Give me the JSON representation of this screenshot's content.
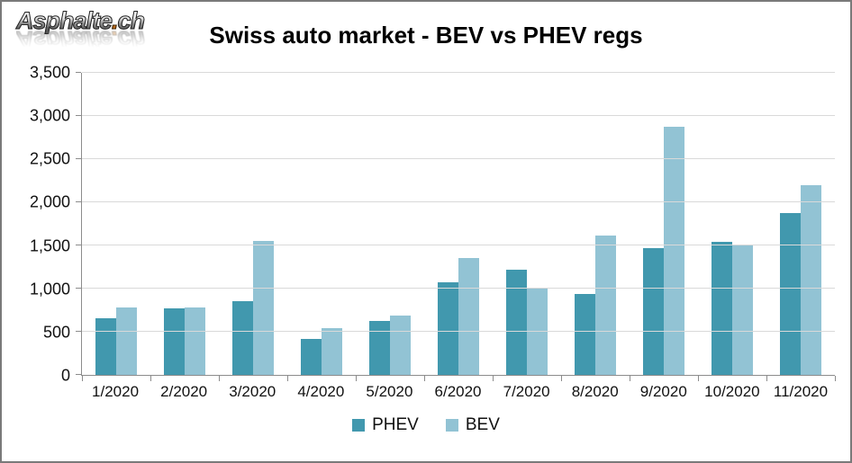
{
  "logo": {
    "main": "Asphalte",
    "dot": ".",
    "suffix": "ch"
  },
  "header": {
    "title": "Swiss auto market - BEV vs PHEV regs"
  },
  "chart_data": {
    "type": "bar",
    "title": "Swiss auto market - BEV vs PHEV regs",
    "categories": [
      "1/2020",
      "2/2020",
      "3/2020",
      "4/2020",
      "5/2020",
      "6/2020",
      "7/2020",
      "8/2020",
      "9/2020",
      "10/2020",
      "11/2020"
    ],
    "series": [
      {
        "name": "PHEV",
        "color": "#4198ae",
        "values": [
          660,
          770,
          850,
          420,
          630,
          1070,
          1220,
          940,
          1470,
          1540,
          1870
        ]
      },
      {
        "name": "BEV",
        "color": "#92c3d4",
        "values": [
          780,
          780,
          1550,
          540,
          690,
          1350,
          1000,
          1610,
          2870,
          1500,
          2200
        ]
      }
    ],
    "xlabel": "",
    "ylabel": "",
    "ylim": [
      0,
      3500
    ],
    "y_ticks": [
      0,
      500,
      1000,
      1500,
      2000,
      2500,
      3000,
      3500
    ],
    "y_tick_labels": [
      "0",
      "500",
      "1,000",
      "1,500",
      "2,000",
      "2,500",
      "3,000",
      "3,500"
    ],
    "grid": true,
    "legend_position": "bottom"
  },
  "colors": {
    "phev": "#4198ae",
    "bev": "#92c3d4",
    "gridline": "#d9d9d9",
    "axis": "#8c8c8c",
    "border": "#7a7a7a",
    "logo_dot_orange": "#c87424"
  }
}
